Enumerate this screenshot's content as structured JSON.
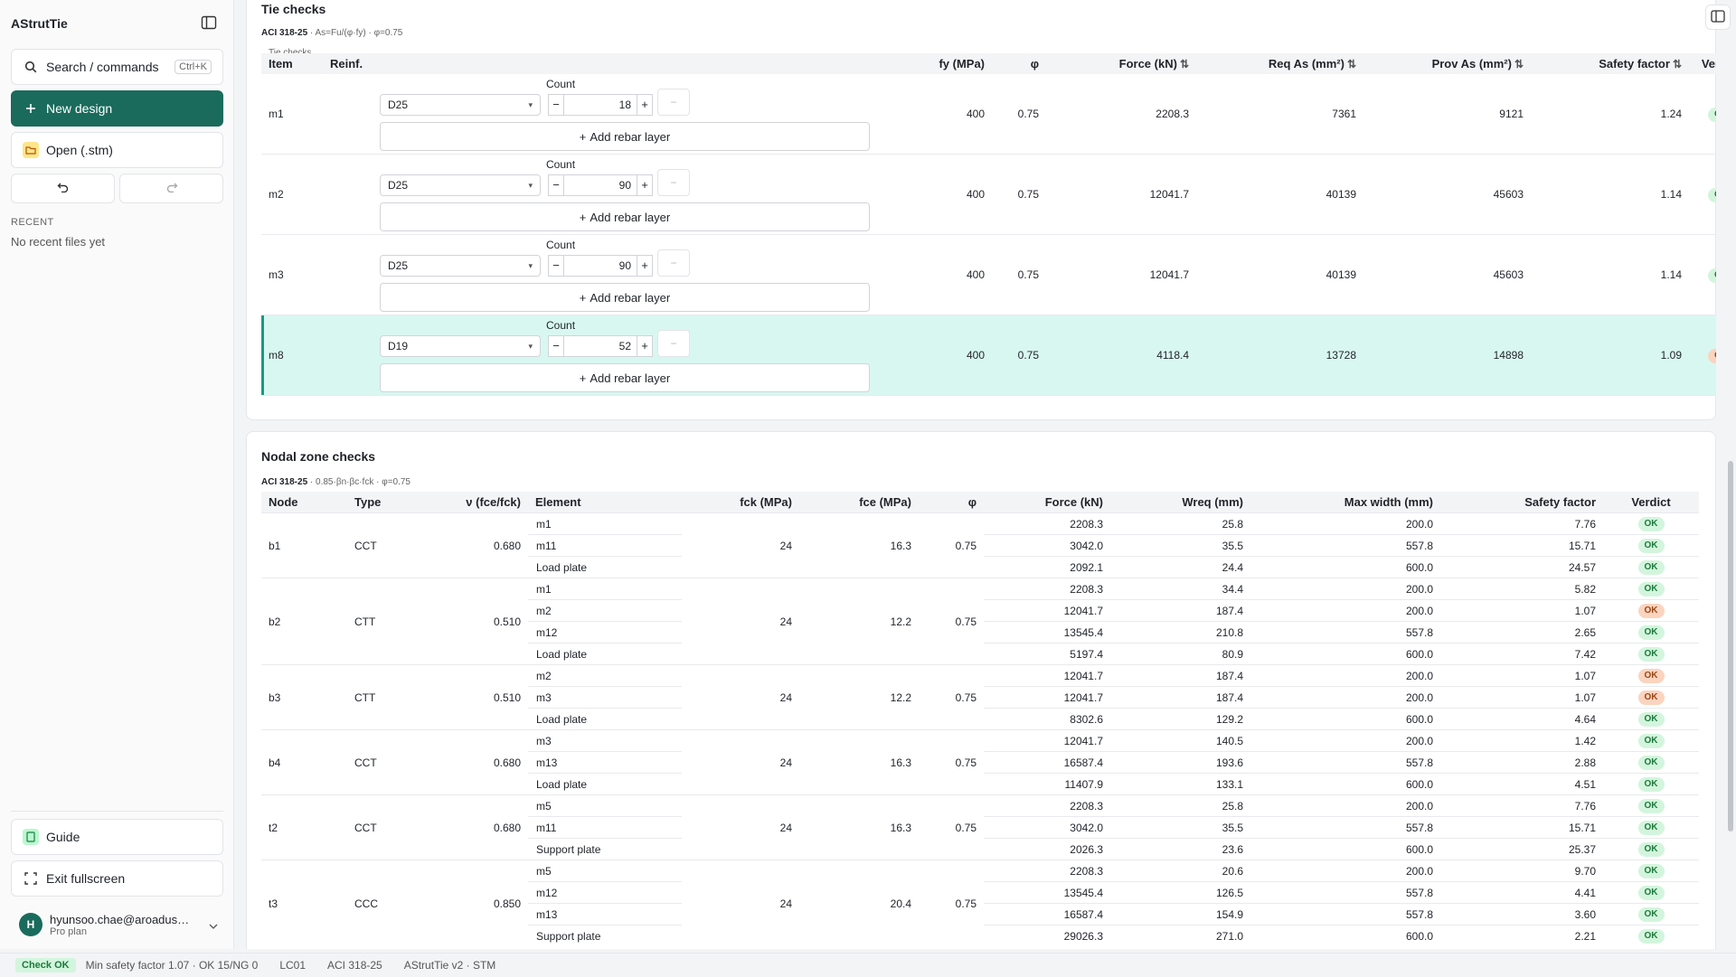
{
  "app": {
    "title": "AStrutTie"
  },
  "sidebar": {
    "search_label": "Search / commands",
    "search_shortcut": "Ctrl+K",
    "new_design": "New design",
    "open_label": "Open (.stm)",
    "recent_label": "RECENT",
    "recent_empty": "No recent files yet",
    "guide": "Guide",
    "exit_fullscreen": "Exit fullscreen",
    "user": {
      "initial": "H",
      "email": "hyunsoo.chae@aroadus…",
      "plan": "Pro plan"
    }
  },
  "tie": {
    "title": "Tie checks",
    "code": "ACI 318-25",
    "formula": " · As=Fu/(φ·fy) · φ=0.75",
    "caption": "Tie checks",
    "count_label": "Count",
    "add_layer": "Add rebar layer",
    "headers": {
      "item": "Item",
      "reinf": "Reinf.",
      "fy": "fy (MPa)",
      "phi": "φ",
      "force": "Force (kN)",
      "req": "Req As (mm²)",
      "prov": "Prov As (mm²)",
      "sf": "Safety factor",
      "verdict": "Verdict"
    },
    "rows": [
      {
        "item": "m1",
        "bar": "D25",
        "count": "18",
        "fy": "400",
        "phi": "0.75",
        "force": "2208.3",
        "req": "7361",
        "prov": "9121",
        "sf": "1.24",
        "verdict": "OK"
      },
      {
        "item": "m2",
        "bar": "D25",
        "count": "90",
        "fy": "400",
        "phi": "0.75",
        "force": "12041.7",
        "req": "40139",
        "prov": "45603",
        "sf": "1.14",
        "verdict": "OK"
      },
      {
        "item": "m3",
        "bar": "D25",
        "count": "90",
        "fy": "400",
        "phi": "0.75",
        "force": "12041.7",
        "req": "40139",
        "prov": "45603",
        "sf": "1.14",
        "verdict": "OK"
      },
      {
        "item": "m8",
        "bar": "D19",
        "count": "52",
        "fy": "400",
        "phi": "0.75",
        "force": "4118.4",
        "req": "13728",
        "prov": "14898",
        "sf": "1.09",
        "verdict": "OK"
      }
    ]
  },
  "nodal": {
    "title": "Nodal zone checks",
    "code": "ACI 318-25",
    "formula": " · 0.85·βn·βc·fck · φ=0.75",
    "headers": {
      "node": "Node",
      "type": "Type",
      "v": "ν (fce/fck)",
      "element": "Element",
      "fck": "fck (MPa)",
      "fce": "fce (MPa)",
      "phi": "φ",
      "force": "Force (kN)",
      "wreq": "Wreq (mm)",
      "maxw": "Max width (mm)",
      "sf": "Safety factor",
      "verdict": "Verdict"
    },
    "groups": [
      {
        "node": "b1",
        "type": "CCT",
        "v": "0.680",
        "fck": "24",
        "fce": "16.3",
        "phi": "0.75",
        "rows": [
          {
            "el": "m1",
            "force": "2208.3",
            "wreq": "25.8",
            "maxw": "200.0",
            "sf": "7.76",
            "verdict": "OK"
          },
          {
            "el": "m11",
            "force": "3042.0",
            "wreq": "35.5",
            "maxw": "557.8",
            "sf": "15.71",
            "verdict": "OK"
          },
          {
            "el": "Load plate",
            "force": "2092.1",
            "wreq": "24.4",
            "maxw": "600.0",
            "sf": "24.57",
            "verdict": "OK"
          }
        ]
      },
      {
        "node": "b2",
        "type": "CTT",
        "v": "0.510",
        "fck": "24",
        "fce": "12.2",
        "phi": "0.75",
        "rows": [
          {
            "el": "m1",
            "force": "2208.3",
            "wreq": "34.4",
            "maxw": "200.0",
            "sf": "5.82",
            "verdict": "OK"
          },
          {
            "el": "m2",
            "force": "12041.7",
            "wreq": "187.4",
            "maxw": "200.0",
            "sf": "1.07",
            "verdict": "OK"
          },
          {
            "el": "m12",
            "force": "13545.4",
            "wreq": "210.8",
            "maxw": "557.8",
            "sf": "2.65",
            "verdict": "OK"
          },
          {
            "el": "Load plate",
            "force": "5197.4",
            "wreq": "80.9",
            "maxw": "600.0",
            "sf": "7.42",
            "verdict": "OK"
          }
        ]
      },
      {
        "node": "b3",
        "type": "CTT",
        "v": "0.510",
        "fck": "24",
        "fce": "12.2",
        "phi": "0.75",
        "rows": [
          {
            "el": "m2",
            "force": "12041.7",
            "wreq": "187.4",
            "maxw": "200.0",
            "sf": "1.07",
            "verdict": "OK"
          },
          {
            "el": "m3",
            "force": "12041.7",
            "wreq": "187.4",
            "maxw": "200.0",
            "sf": "1.07",
            "verdict": "OK"
          },
          {
            "el": "Load plate",
            "force": "8302.6",
            "wreq": "129.2",
            "maxw": "600.0",
            "sf": "4.64",
            "verdict": "OK"
          }
        ]
      },
      {
        "node": "b4",
        "type": "CCT",
        "v": "0.680",
        "fck": "24",
        "fce": "16.3",
        "phi": "0.75",
        "rows": [
          {
            "el": "m3",
            "force": "12041.7",
            "wreq": "140.5",
            "maxw": "200.0",
            "sf": "1.42",
            "verdict": "OK"
          },
          {
            "el": "m13",
            "force": "16587.4",
            "wreq": "193.6",
            "maxw": "557.8",
            "sf": "2.88",
            "verdict": "OK"
          },
          {
            "el": "Load plate",
            "force": "11407.9",
            "wreq": "133.1",
            "maxw": "600.0",
            "sf": "4.51",
            "verdict": "OK"
          }
        ]
      },
      {
        "node": "t2",
        "type": "CCT",
        "v": "0.680",
        "fck": "24",
        "fce": "16.3",
        "phi": "0.75",
        "rows": [
          {
            "el": "m5",
            "force": "2208.3",
            "wreq": "25.8",
            "maxw": "200.0",
            "sf": "7.76",
            "verdict": "OK"
          },
          {
            "el": "m11",
            "force": "3042.0",
            "wreq": "35.5",
            "maxw": "557.8",
            "sf": "15.71",
            "verdict": "OK"
          },
          {
            "el": "Support plate",
            "force": "2026.3",
            "wreq": "23.6",
            "maxw": "600.0",
            "sf": "25.37",
            "verdict": "OK"
          }
        ]
      },
      {
        "node": "t3",
        "type": "CCC",
        "v": "0.850",
        "fck": "24",
        "fce": "20.4",
        "phi": "0.75",
        "rows": [
          {
            "el": "m5",
            "force": "2208.3",
            "wreq": "20.6",
            "maxw": "200.0",
            "sf": "9.70",
            "verdict": "OK"
          },
          {
            "el": "m12",
            "force": "13545.4",
            "wreq": "126.5",
            "maxw": "557.8",
            "sf": "4.41",
            "verdict": "OK"
          },
          {
            "el": "m13",
            "force": "16587.4",
            "wreq": "154.9",
            "maxw": "557.8",
            "sf": "3.60",
            "verdict": "OK"
          },
          {
            "el": "Support plate",
            "force": "29026.3",
            "wreq": "271.0",
            "maxw": "600.0",
            "sf": "2.21",
            "verdict": "OK"
          }
        ]
      }
    ]
  },
  "status": {
    "check": "Check OK",
    "summary": "Min safety factor 1.07 · OK 15/NG 0",
    "load_case": "LC01",
    "code": "ACI 318-25",
    "version": "AStrutTie v2 · STM"
  },
  "colors": {
    "accent": "#1a6b5c",
    "ok_bg": "#d3f5dd",
    "warn_bg": "#fbd4bf",
    "highlight": "#d9f7f1"
  }
}
